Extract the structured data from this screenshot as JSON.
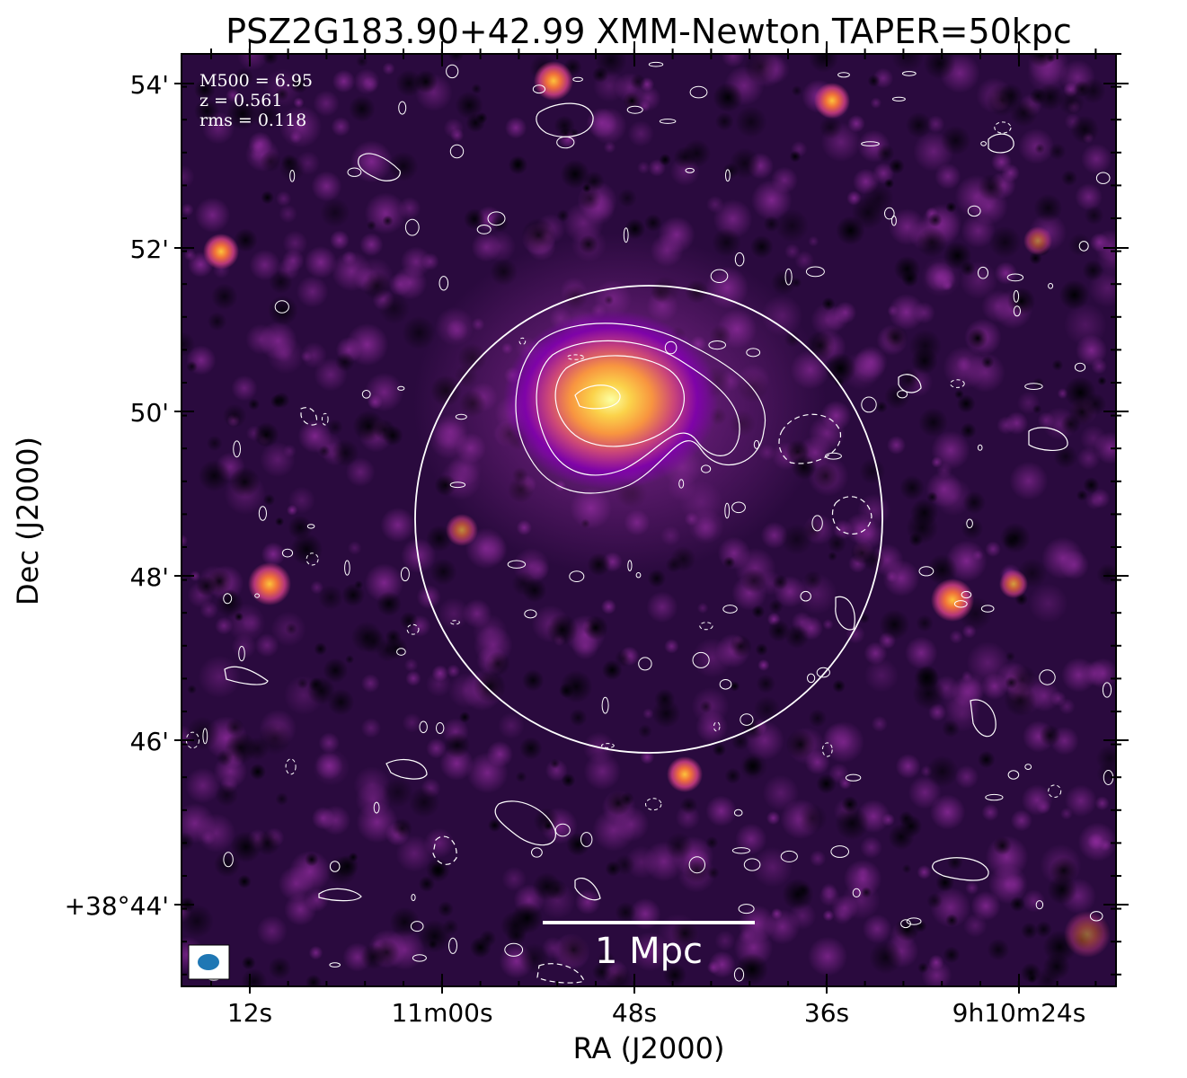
{
  "title": "PSZ2G183.90+42.99 XMM-Newton TAPER=50kpc",
  "axes": {
    "xlabel": "RA (J2000)",
    "ylabel": "Dec (J2000)",
    "xticks": [
      "12s",
      "11m00s",
      "48s",
      "36s",
      "9h10m24s"
    ],
    "yticks": [
      "54'",
      "52'",
      "50'",
      "48'",
      "46'",
      "+38°44'"
    ]
  },
  "info": {
    "m500": "M500 = 6.95",
    "z": "z = 0.561",
    "rms": "rms = 0.118"
  },
  "scalebar": {
    "label": "1 Mpc"
  },
  "colors": {
    "background": "#0d0310",
    "cluster_core": "#fcffa4",
    "contours": "#ffffff",
    "beam": "#1f77b4"
  }
}
